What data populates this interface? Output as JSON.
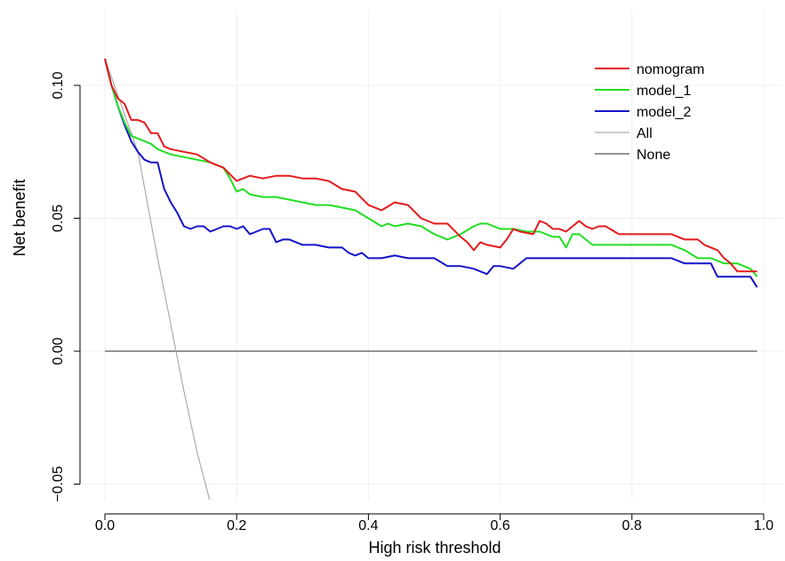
{
  "chart_data": {
    "type": "line",
    "title": "",
    "xlabel": "High risk threshold",
    "ylabel": "Net benefit",
    "xlim": [
      0,
      1.0
    ],
    "ylim": [
      -0.05,
      0.11
    ],
    "x_ticks": [
      "0.0",
      "0.2",
      "0.4",
      "0.6",
      "0.8",
      "1.0"
    ],
    "y_ticks": [
      "−0.05",
      "0.00",
      "0.05",
      "0.10"
    ],
    "grid": true,
    "legend_position": "top-right",
    "series": [
      {
        "name": "nomogram",
        "color": "#e41a1c",
        "x": [
          0,
          0.01,
          0.02,
          0.03,
          0.04,
          0.05,
          0.06,
          0.07,
          0.08,
          0.09,
          0.1,
          0.12,
          0.14,
          0.16,
          0.18,
          0.2,
          0.22,
          0.24,
          0.26,
          0.28,
          0.3,
          0.32,
          0.34,
          0.36,
          0.38,
          0.4,
          0.42,
          0.44,
          0.46,
          0.48,
          0.5,
          0.52,
          0.54,
          0.55,
          0.56,
          0.57,
          0.58,
          0.6,
          0.61,
          0.62,
          0.63,
          0.65,
          0.66,
          0.67,
          0.68,
          0.69,
          0.7,
          0.72,
          0.73,
          0.74,
          0.75,
          0.76,
          0.78,
          0.8,
          0.82,
          0.84,
          0.86,
          0.88,
          0.9,
          0.91,
          0.92,
          0.93,
          0.94,
          0.95,
          0.96,
          0.97,
          0.98,
          0.99
        ],
        "y": [
          0.11,
          0.1,
          0.095,
          0.093,
          0.087,
          0.087,
          0.086,
          0.082,
          0.082,
          0.077,
          0.076,
          0.075,
          0.074,
          0.071,
          0.069,
          0.064,
          0.066,
          0.065,
          0.066,
          0.066,
          0.065,
          0.065,
          0.064,
          0.061,
          0.06,
          0.055,
          0.053,
          0.056,
          0.055,
          0.05,
          0.048,
          0.048,
          0.043,
          0.041,
          0.038,
          0.041,
          0.04,
          0.039,
          0.042,
          0.046,
          0.045,
          0.044,
          0.049,
          0.048,
          0.046,
          0.046,
          0.045,
          0.049,
          0.047,
          0.046,
          0.047,
          0.047,
          0.044,
          0.044,
          0.044,
          0.044,
          0.044,
          0.042,
          0.042,
          0.04,
          0.039,
          0.038,
          0.035,
          0.033,
          0.03,
          0.03,
          0.03,
          0.03
        ]
      },
      {
        "name": "model_1",
        "color": "#22dd22",
        "x": [
          0,
          0.01,
          0.02,
          0.03,
          0.04,
          0.05,
          0.06,
          0.07,
          0.08,
          0.1,
          0.12,
          0.14,
          0.16,
          0.18,
          0.19,
          0.2,
          0.21,
          0.22,
          0.24,
          0.26,
          0.28,
          0.3,
          0.32,
          0.34,
          0.36,
          0.38,
          0.4,
          0.42,
          0.43,
          0.44,
          0.46,
          0.48,
          0.5,
          0.52,
          0.54,
          0.56,
          0.57,
          0.58,
          0.6,
          0.62,
          0.64,
          0.66,
          0.68,
          0.69,
          0.7,
          0.71,
          0.72,
          0.74,
          0.76,
          0.78,
          0.8,
          0.82,
          0.84,
          0.86,
          0.88,
          0.9,
          0.92,
          0.94,
          0.96,
          0.98,
          0.99
        ],
        "y": [
          0.11,
          0.1,
          0.092,
          0.086,
          0.081,
          0.08,
          0.079,
          0.078,
          0.076,
          0.074,
          0.073,
          0.072,
          0.071,
          0.069,
          0.065,
          0.06,
          0.061,
          0.059,
          0.058,
          0.058,
          0.057,
          0.056,
          0.055,
          0.055,
          0.054,
          0.053,
          0.05,
          0.047,
          0.048,
          0.047,
          0.048,
          0.047,
          0.044,
          0.042,
          0.044,
          0.047,
          0.048,
          0.048,
          0.046,
          0.046,
          0.045,
          0.045,
          0.043,
          0.043,
          0.039,
          0.044,
          0.044,
          0.04,
          0.04,
          0.04,
          0.04,
          0.04,
          0.04,
          0.04,
          0.038,
          0.035,
          0.035,
          0.033,
          0.033,
          0.031,
          0.028
        ]
      },
      {
        "name": "model_2",
        "color": "#1414c8",
        "x": [
          0,
          0.01,
          0.02,
          0.03,
          0.04,
          0.05,
          0.06,
          0.07,
          0.08,
          0.09,
          0.1,
          0.11,
          0.12,
          0.13,
          0.14,
          0.15,
          0.16,
          0.17,
          0.18,
          0.19,
          0.2,
          0.21,
          0.22,
          0.23,
          0.24,
          0.25,
          0.26,
          0.27,
          0.28,
          0.29,
          0.3,
          0.32,
          0.34,
          0.36,
          0.37,
          0.38,
          0.39,
          0.4,
          0.42,
          0.44,
          0.46,
          0.48,
          0.5,
          0.52,
          0.54,
          0.56,
          0.58,
          0.59,
          0.6,
          0.62,
          0.64,
          0.66,
          0.68,
          0.7,
          0.72,
          0.74,
          0.76,
          0.78,
          0.8,
          0.82,
          0.84,
          0.86,
          0.88,
          0.9,
          0.92,
          0.93,
          0.94,
          0.96,
          0.98,
          0.99
        ],
        "y": [
          0.11,
          0.1,
          0.092,
          0.085,
          0.079,
          0.075,
          0.072,
          0.071,
          0.071,
          0.061,
          0.056,
          0.052,
          0.047,
          0.046,
          0.047,
          0.047,
          0.045,
          0.046,
          0.047,
          0.047,
          0.046,
          0.047,
          0.044,
          0.045,
          0.046,
          0.046,
          0.041,
          0.042,
          0.042,
          0.041,
          0.04,
          0.04,
          0.039,
          0.039,
          0.037,
          0.036,
          0.037,
          0.035,
          0.035,
          0.036,
          0.035,
          0.035,
          0.035,
          0.032,
          0.032,
          0.031,
          0.029,
          0.032,
          0.032,
          0.031,
          0.035,
          0.035,
          0.035,
          0.035,
          0.035,
          0.035,
          0.035,
          0.035,
          0.035,
          0.035,
          0.035,
          0.035,
          0.033,
          0.033,
          0.033,
          0.028,
          0.028,
          0.028,
          0.028,
          0.024
        ]
      },
      {
        "name": "All",
        "color": "#aaaaaa",
        "x": [
          0,
          0.05,
          0.08,
          0.1,
          0.12,
          0.14,
          0.16
        ],
        "y": [
          0.11,
          0.075,
          0.035,
          0.01,
          -0.015,
          -0.038,
          -0.057
        ]
      },
      {
        "name": "None",
        "color": "#555555",
        "x": [
          0,
          0.99
        ],
        "y": [
          0,
          0
        ]
      }
    ]
  }
}
